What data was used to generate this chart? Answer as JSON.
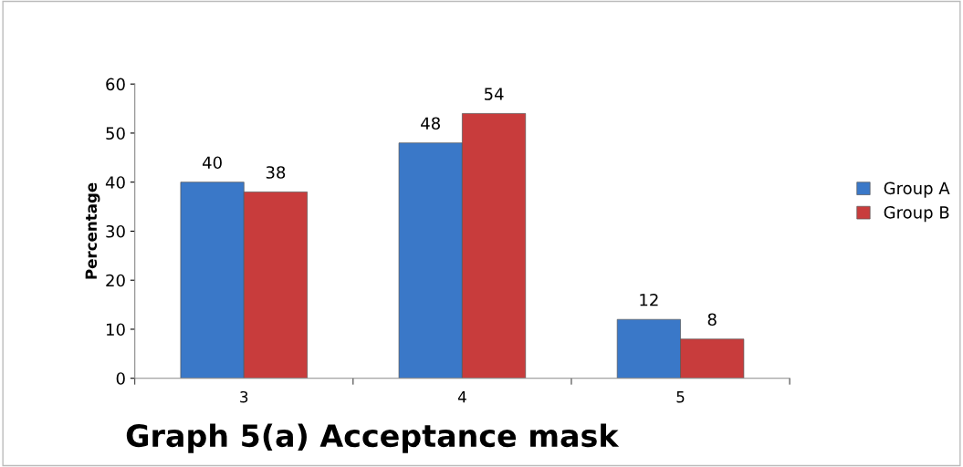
{
  "chart_data": {
    "type": "bar",
    "title": "Graph 5(a) Acceptance mask",
    "ylabel": "Percentage",
    "categories": [
      "3",
      "4",
      "5"
    ],
    "series": [
      {
        "name": "Group A",
        "color": "#3a78c8",
        "values": [
          40,
          48,
          12
        ]
      },
      {
        "name": "Group B",
        "color": "#c83c3c",
        "values": [
          38,
          54,
          8
        ]
      }
    ],
    "ylim": [
      0,
      60
    ],
    "yticks": [
      0,
      10,
      20,
      30,
      40,
      50,
      60
    ],
    "data_labels": true,
    "grid": false,
    "legend": "right"
  }
}
